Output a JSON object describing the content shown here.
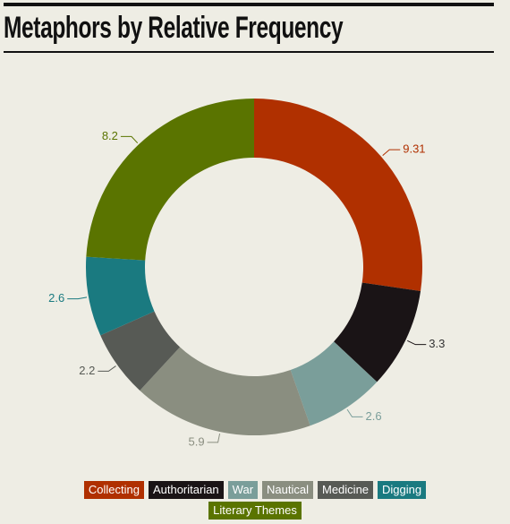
{
  "chart_data": {
    "type": "donut",
    "title": "Metaphors by Relative Frequency",
    "categories": [
      "Collecting",
      "Authoritarian",
      "War",
      "Nautical",
      "Medicine",
      "Digging",
      "Literary Themes"
    ],
    "values": [
      9.31,
      3.3,
      2.6,
      5.9,
      2.2,
      2.6,
      8.2
    ],
    "colors": [
      "#b03000",
      "#1a1416",
      "#7a9e9a",
      "#8a8e80",
      "#575a55",
      "#1a7a80",
      "#5a7400"
    ],
    "legend": "bottom"
  }
}
